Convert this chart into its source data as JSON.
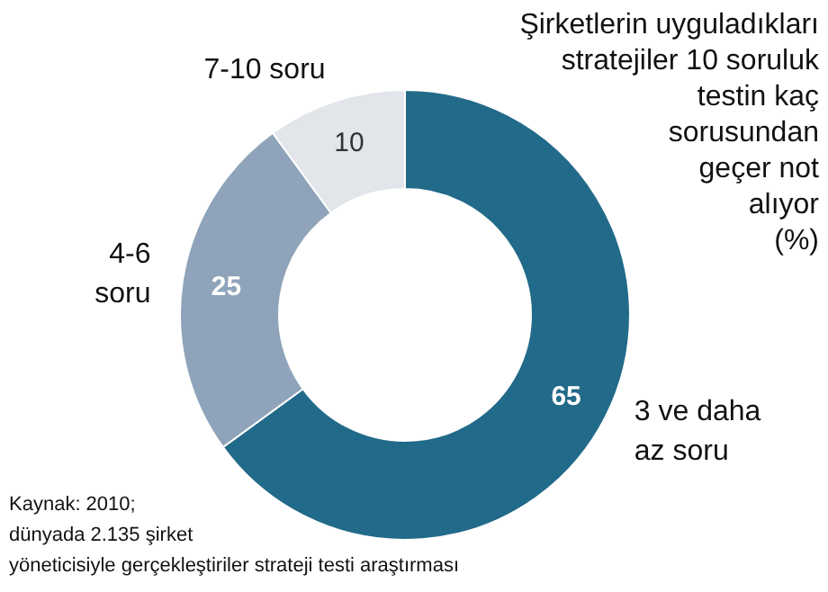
{
  "chart_data": {
    "type": "donut",
    "title": "Şirketlerin uyguladıkları\nstratejiler 10 soruluk\ntestin kaç\nsorusundan\ngeçer not\nalıyor\n(%)",
    "categories": [
      "3 ve daha\naz soru",
      "4-6\nsoru",
      "7-10 soru"
    ],
    "values": [
      65,
      25,
      10
    ],
    "colors": [
      "#226a89",
      "#8fa4ba",
      "#e2e6eb"
    ],
    "data_labels": true,
    "legend": false,
    "annotations": [
      "Kaynak: 2010;\ndünyada 2.135 şirket\nyöneticisiyle gerçekleştiriler strateji testi araştırması"
    ]
  }
}
